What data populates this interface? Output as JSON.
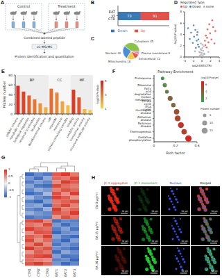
{
  "panel_labels": [
    "A",
    "B",
    "C",
    "D",
    "E",
    "F",
    "G",
    "H"
  ],
  "diagram": {
    "groups": [
      "Control",
      "Treatment"
    ],
    "steps": [
      "Combined labeled peptide",
      "LC-MS/MS",
      "Protein identification and quantitation"
    ]
  },
  "chart_data": [
    {
      "type": "bar",
      "orientation": "horizontal",
      "stacked": true,
      "categories": [
        "EAT vs CTR"
      ],
      "series": [
        {
          "name": "Down",
          "color": "#3c78b4",
          "values": [
            73
          ]
        },
        {
          "name": "Up",
          "color": "#e0524a",
          "values": [
            91
          ]
        }
      ],
      "xlim": [
        0,
        164
      ],
      "tick_labels": "y",
      "data_labels": true,
      "legend": "bottom"
    },
    {
      "type": "pie",
      "categories": [
        "Cytoplasm",
        "Nucleus",
        "Mitochondria",
        "Extracellular",
        "Plasma membrane"
      ],
      "values": [
        45,
        30,
        18,
        12,
        8
      ],
      "colors": [
        "#8bc34a",
        "#4a90d9",
        "#f2c94c",
        "#e05b4b",
        "#e88bb5"
      ],
      "data_labels": true
    },
    {
      "type": "scatter",
      "legend_title": "Regulated Type",
      "legend": "top",
      "xlabel": "log2(EAT/CTR)",
      "ylabel": "-log10(P value)",
      "xlim": [
        -4,
        4
      ],
      "xticks": [
        -4,
        -2,
        0,
        2,
        4
      ],
      "ylim": [
        0,
        8
      ],
      "yticks": [
        0,
        2,
        4,
        6,
        8
      ],
      "series": [
        {
          "name": "Up",
          "color": "#e0524a",
          "x": [
            0.8,
            1.2,
            1.9,
            2.6,
            0.9,
            1.5,
            2.2,
            3.1,
            1.1,
            0.7,
            1.7,
            2.9,
            1.3,
            2.4
          ],
          "y": [
            2.1,
            3.4,
            4.2,
            5.3,
            3.8,
            2.6,
            3.1,
            4.6,
            1.7,
            2.9,
            5.8,
            2.4,
            4.9,
            6.5
          ]
        },
        {
          "name": "Down",
          "color": "#3c78b4",
          "x": [
            -3.2,
            -2.5,
            -1.8,
            -1.2,
            -0.9,
            -1.5,
            -2.1,
            -0.7,
            -1.1,
            -2.8,
            -1.4,
            -0.8,
            -1.9,
            -1.0
          ],
          "y": [
            5.1,
            4.3,
            3.6,
            2.9,
            2.2,
            4.8,
            2.5,
            1.8,
            3.9,
            3.2,
            1.6,
            3.1,
            5.6,
            4.4
          ]
        },
        {
          "name": "none",
          "color": "#b0b0b0",
          "x": [
            -0.4,
            0.3,
            -0.2,
            0.1,
            0.5,
            -0.6,
            0.2,
            -0.1,
            0.4,
            -0.3,
            0.6,
            -0.5,
            0.0,
            1.5,
            -1.6,
            0.15,
            -0.25
          ],
          "y": [
            0.8,
            1.1,
            0.4,
            1.6,
            0.6,
            0.9,
            0.3,
            1.2,
            1.9,
            1.4,
            0.5,
            0.2,
            0.7,
            0.9,
            1.0,
            2.2,
            2.4
          ]
        }
      ]
    },
    {
      "type": "bar",
      "categories": [
        "cellular process",
        "metabolic process",
        "biological regulation",
        "response to stimulus",
        "localization",
        "developmental process",
        "cell",
        "organelle",
        "membrane",
        "protein-containing complex",
        "binding",
        "catalytic activity",
        "transporter activity",
        "structural molecule activity"
      ],
      "values": [
        58,
        46,
        38,
        30,
        22,
        14,
        52,
        44,
        26,
        18,
        50,
        34,
        10,
        8
      ],
      "groups": [
        "BP",
        "BP",
        "BP",
        "BP",
        "BP",
        "BP",
        "CC",
        "CC",
        "CC",
        "CC",
        "MF",
        "MF",
        "MF",
        "MF"
      ],
      "color_values": [
        4.6,
        4.1,
        3.5,
        3.0,
        2.4,
        1.8,
        3.2,
        2.7,
        2.0,
        1.5,
        4.3,
        3.8,
        1.6,
        1.2
      ],
      "colorbar": {
        "title": "-log10(Pvalue)",
        "range": [
          1,
          5
        ],
        "ticks": [
          1,
          3,
          5
        ]
      },
      "ylabel": "Protein number",
      "ylim": [
        0,
        80
      ],
      "yticks": [
        0,
        20,
        40,
        60,
        80
      ]
    },
    {
      "type": "scatter",
      "title": "Pathway Enrichment",
      "categories": [
        "Oxidative phosphorylation",
        "Thermogenesis",
        "Parkinson disease",
        "Alzheimer disease",
        "Huntington disease",
        "Citrate cycle (TCA cycle)",
        "Carbon metabolism",
        "Fatty acid degradation",
        "Ribosome",
        "Proteasome"
      ],
      "x": [
        0.32,
        0.28,
        0.25,
        0.22,
        0.21,
        0.18,
        0.15,
        0.12,
        0.1,
        0.08
      ],
      "protein_number": [
        16,
        12,
        14,
        13,
        12,
        8,
        10,
        6,
        7,
        5
      ],
      "color_values": [
        6.5,
        5.2,
        5.8,
        5.0,
        4.6,
        3.4,
        3.8,
        2.6,
        2.2,
        1.8
      ],
      "xlabel": "Rich factor",
      "xlim": [
        0,
        0.4
      ],
      "xticks": [
        0,
        0.2,
        0.4
      ],
      "size_lim": [
        0,
        20
      ],
      "size_legend": {
        "title": "Protein number",
        "values": [
          5,
          10,
          15
        ]
      },
      "colorbar": {
        "title": "-log10(Pvalue)",
        "range": [
          1,
          7
        ],
        "ticks": [
          2,
          4,
          6
        ]
      }
    },
    {
      "type": "heatmap",
      "x": [
        "CTR1",
        "CTR2",
        "CTR3",
        "EAT1",
        "EAT2",
        "EAT3"
      ],
      "cells": [
        [
          -0.92,
          -0.71,
          -0.83,
          0.78,
          0.95,
          0.64
        ],
        [
          -0.64,
          -0.88,
          -0.52,
          0.71,
          0.62,
          0.9
        ],
        [
          -0.81,
          -0.6,
          -0.74,
          0.55,
          0.93,
          0.79
        ],
        [
          -0.55,
          -0.83,
          -0.91,
          0.88,
          0.7,
          0.61
        ],
        [
          -0.73,
          -0.49,
          -0.62,
          0.6,
          0.82,
          0.71
        ],
        [
          -0.9,
          -0.79,
          -0.41,
          0.84,
          0.53,
          0.92
        ],
        [
          -0.42,
          -0.68,
          -0.8,
          0.91,
          0.77,
          0.48
        ],
        [
          -0.79,
          -0.93,
          -0.58,
          0.63,
          0.74,
          0.85
        ],
        [
          -0.61,
          -0.52,
          -0.89,
          0.7,
          0.88,
          0.59
        ],
        [
          -0.7,
          -0.81,
          -0.47,
          0.93,
          0.6,
          0.72
        ],
        [
          -0.48,
          -0.63,
          -0.72,
          0.8,
          0.69,
          0.94
        ],
        [
          -0.86,
          -0.74,
          -0.79,
          0.51,
          0.84,
          0.66
        ],
        [
          0.83,
          0.91,
          0.6,
          -0.88,
          -0.72,
          -0.79
        ],
        [
          0.66,
          0.58,
          0.87,
          -0.61,
          -0.9,
          -0.7
        ],
        [
          0.92,
          0.75,
          0.68,
          -0.79,
          -0.57,
          -0.86
        ],
        [
          0.54,
          0.83,
          0.79,
          -0.93,
          -0.68,
          -0.62
        ],
        [
          0.77,
          0.64,
          0.92,
          -0.55,
          -0.81,
          -0.9
        ],
        [
          0.88,
          0.52,
          0.71,
          -0.72,
          -0.94,
          -0.58
        ],
        [
          0.61,
          0.9,
          0.56,
          -0.84,
          -0.63,
          -0.77
        ],
        [
          0.95,
          0.69,
          0.83,
          -0.67,
          -0.78,
          -0.92
        ],
        [
          0.5,
          0.77,
          0.64,
          -0.9,
          -0.52,
          -0.69
        ],
        [
          0.74,
          0.86,
          0.93,
          -0.58,
          -0.87,
          -0.81
        ],
        [
          0.69,
          0.6,
          0.52,
          -0.76,
          -0.7,
          -0.95
        ],
        [
          0.81,
          0.94,
          0.75,
          -0.63,
          -0.92,
          -0.74
        ]
      ],
      "colorbar": {
        "range": [
          -1,
          1
        ],
        "ticks": [
          -1,
          -0.5,
          0,
          0.5,
          1
        ]
      }
    }
  ],
  "images": {
    "columns": [
      "JC-1 aggregates",
      "JC-1 monomers",
      "Nucleus",
      "Merged"
    ],
    "rows": [
      "EA 0 μg/ml",
      "EA 15 μg/ml",
      "EA 30 μg/ml"
    ],
    "scale_bar": "50 μm"
  }
}
